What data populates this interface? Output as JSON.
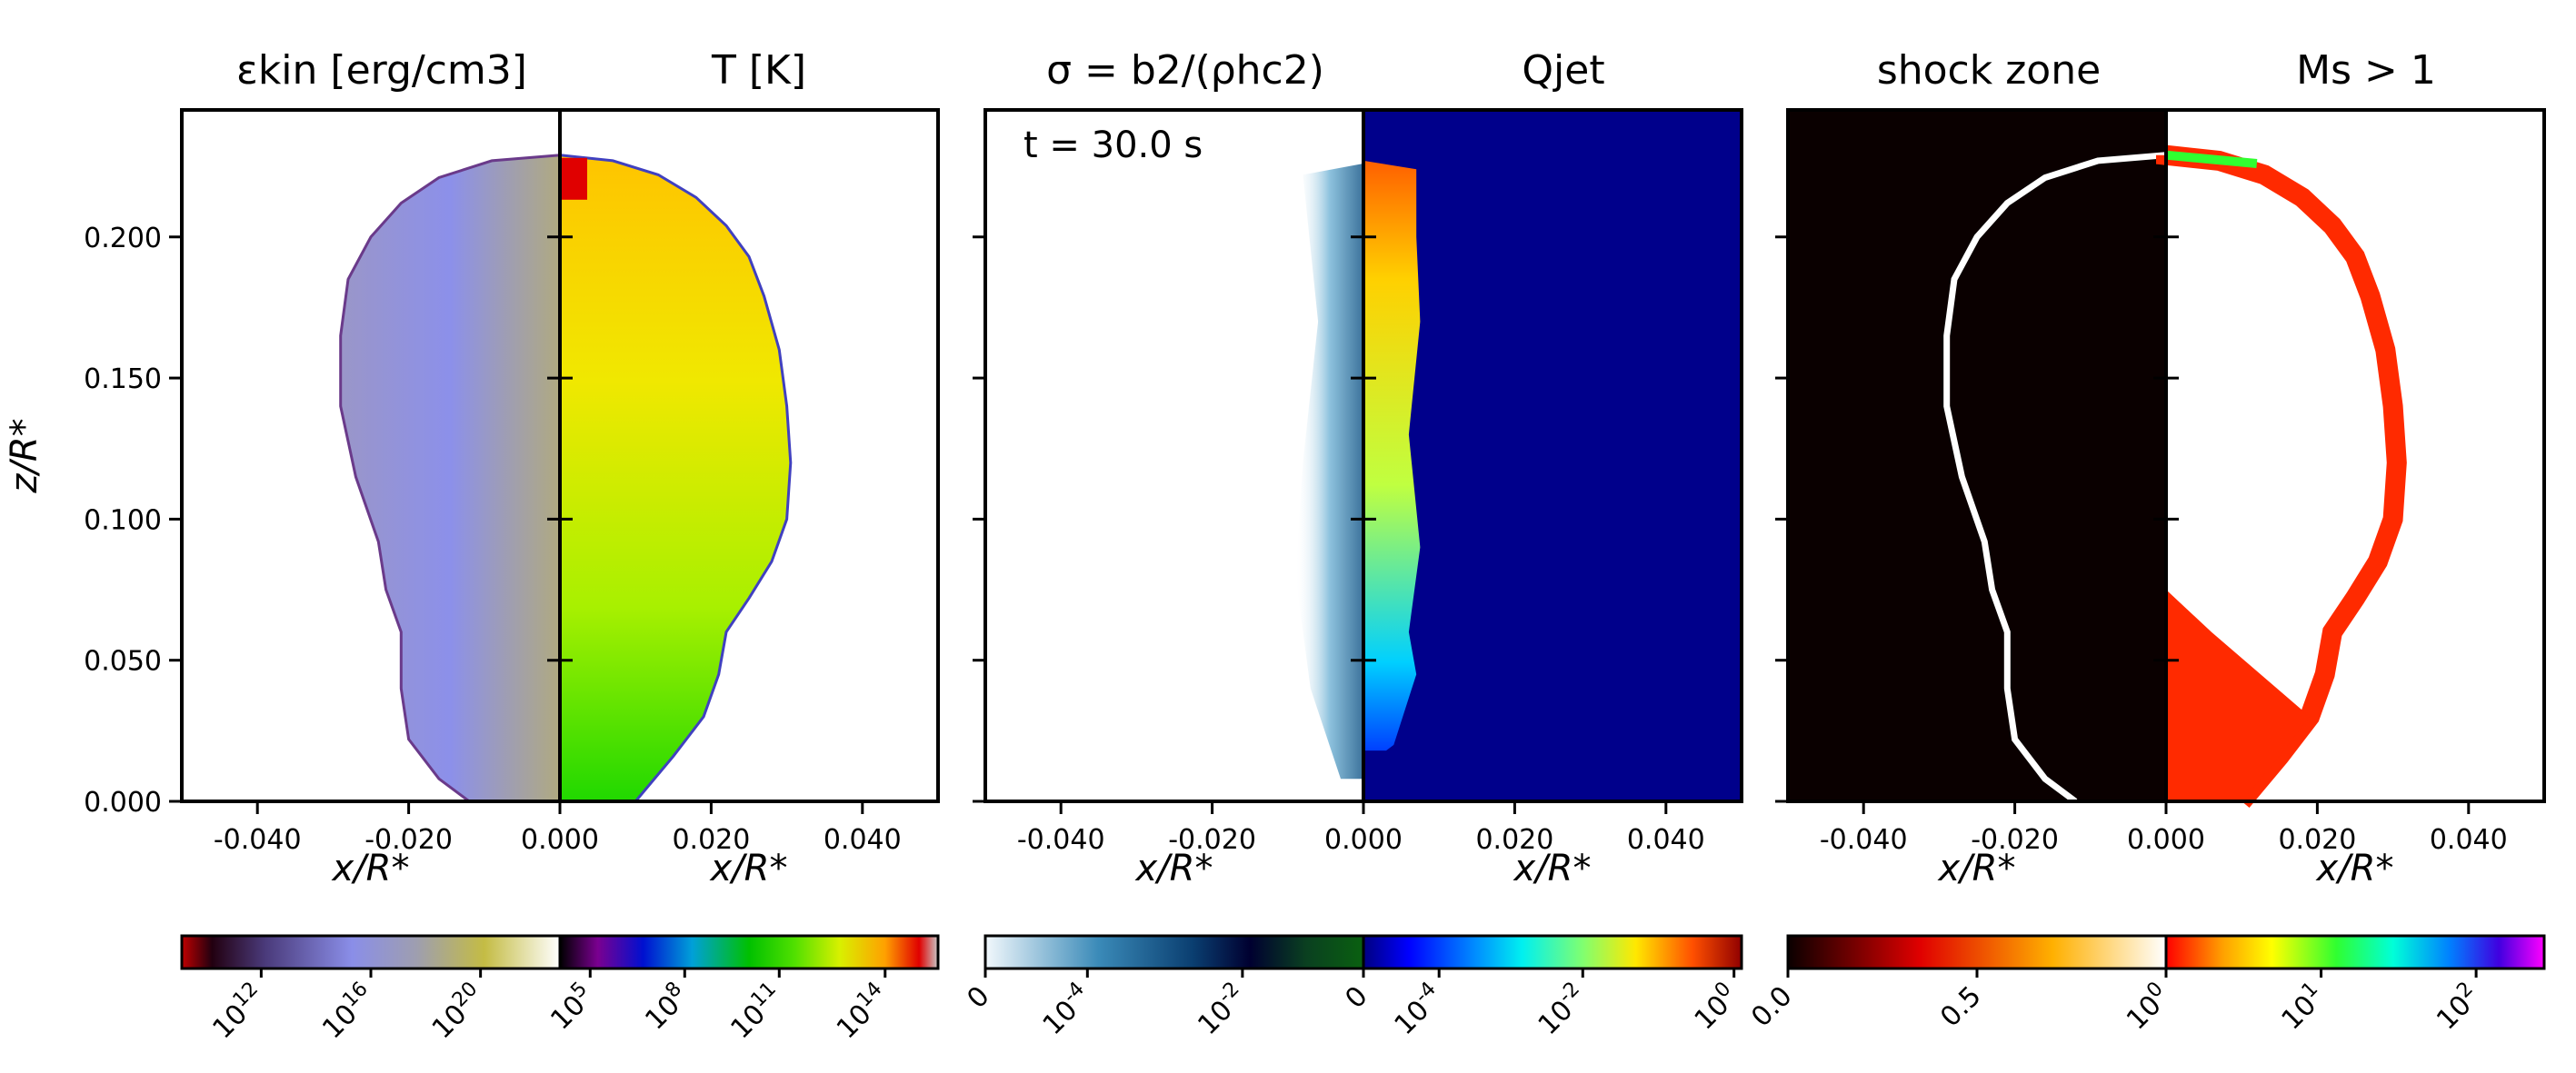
{
  "figure": {
    "background": "#ffffff"
  },
  "chart_data": [
    {
      "type": "heatmap",
      "panel": "left",
      "left_title": "εkin [erg/cm3]",
      "right_title": "T [K]",
      "xlabel": "x/R*",
      "ylabel": "z/R*",
      "xlim": [
        -0.05,
        0.05
      ],
      "ylim": [
        0.0,
        0.245
      ],
      "x_ticks": [
        "-0.040",
        "-0.020",
        "0.000",
        "0.020",
        "0.040"
      ],
      "y_ticks": [
        "0.000",
        "0.050",
        "0.100",
        "0.150",
        "0.200"
      ],
      "left_colorbar": {
        "scale": "log",
        "range": [
          1000000000.0,
          1e+23
        ],
        "ticks": [
          "10^12",
          "10^16",
          "10^20"
        ]
      },
      "right_colorbar": {
        "scale": "log",
        "range": [
          1000.0,
          1000000000000000.0
        ],
        "ticks": [
          "10^5",
          "10^8",
          "10^11",
          "10^14"
        ]
      },
      "colors": {
        "left_fill": "#8f91e6",
        "right_fill": "#e8ee00",
        "outside": "#ffffff"
      }
    },
    {
      "type": "heatmap",
      "panel": "middle",
      "annotation": "t = 30.0 s",
      "left_title": "σ = b2/(ρhc2)",
      "right_title": "Qjet",
      "xlabel": "x/R*",
      "xlim": [
        -0.05,
        0.05
      ],
      "ylim": [
        0.0,
        0.245
      ],
      "x_ticks": [
        "-0.040",
        "-0.020",
        "0.000",
        "0.020",
        "0.040"
      ],
      "left_colorbar": {
        "scale": "symlog",
        "ticks": [
          "0",
          "10^-4",
          "10^-2"
        ]
      },
      "right_colorbar": {
        "scale": "symlog",
        "ticks": [
          "0",
          "10^-4",
          "10^-2",
          "10^0"
        ]
      },
      "colors": {
        "left_fill": "#2e7da8",
        "right_background": "#00008b",
        "right_fill": "#22c0ff"
      }
    },
    {
      "type": "heatmap",
      "panel": "right",
      "left_title": "shock zone",
      "right_title": "Ms > 1",
      "xlabel": "x/R*",
      "xlim": [
        -0.05,
        0.05
      ],
      "ylim": [
        0.0,
        0.245
      ],
      "x_ticks": [
        "-0.040",
        "-0.020",
        "0.000",
        "0.020",
        "0.040"
      ],
      "left_colorbar": {
        "scale": "linear",
        "range": [
          0.0,
          1.0
        ],
        "ticks": [
          "0.0",
          "0.5"
        ]
      },
      "right_colorbar": {
        "scale": "log",
        "range": [
          1,
          500
        ],
        "ticks": [
          "10^0",
          "10^1",
          "10^2"
        ]
      },
      "colors": {
        "left_background": "#0a0000",
        "shock_line": "#ffffff",
        "right_fill": "#ff2a00"
      }
    }
  ]
}
